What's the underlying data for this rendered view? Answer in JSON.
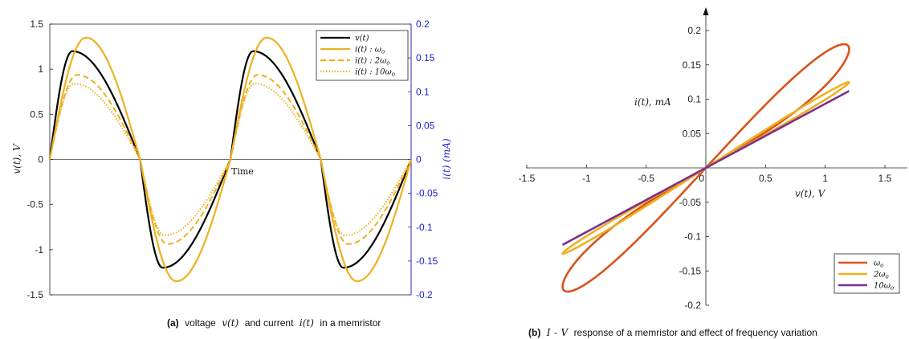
{
  "chart_data": [
    {
      "type": "line",
      "caption_label": "(a)",
      "caption_parts": [
        "voltage",
        "v(t)",
        "and current",
        "i(t)",
        "in a memristor"
      ],
      "xlabel": "Time",
      "ylabel": "v(t),  V",
      "ylabel_right": "i(t)  (mA)",
      "ylim": [
        -1.5,
        1.5
      ],
      "ylim_right": [
        -0.2,
        0.2
      ],
      "yticks": [
        "1.5",
        "1",
        "0.5",
        "0",
        "-0.5",
        "-1",
        "-1.5"
      ],
      "yticks_right": [
        "0.2",
        "0.15",
        "0.1",
        "0.05",
        "0",
        "-0.05",
        "-0.1",
        "-0.15",
        "-0.2"
      ],
      "legend_position": "top-right",
      "colors": {
        "voltage": "#000000",
        "current": "#EDB120",
        "right_axis": "#1f1fd0"
      },
      "series": [
        {
          "name": "v(t)",
          "axis": "left",
          "style": "solid",
          "amplitude": 1.2,
          "peak_x": [
            0.25,
            2.25
          ],
          "trough_x": [
            1.25,
            3.25
          ],
          "zero_x": [
            0,
            1,
            2,
            3,
            4
          ]
        },
        {
          "name": "i(t) :  ωo",
          "axis": "right",
          "style": "solid",
          "amplitude": 0.18,
          "peak_x": [
            0.4,
            2.4
          ],
          "trough_x": [
            1.4,
            3.4
          ],
          "zero_x": [
            0,
            1,
            2,
            3,
            4
          ]
        },
        {
          "name": "i(t) :  2ωo",
          "axis": "right",
          "style": "dashed",
          "amplitude": 0.125,
          "peak_x": [
            0.3,
            2.3
          ],
          "trough_x": [
            1.3,
            3.3
          ],
          "zero_x": [
            0,
            1,
            2,
            3,
            4
          ]
        },
        {
          "name": "i(t) :  10ωo",
          "axis": "right",
          "style": "dotted",
          "amplitude": 0.112,
          "peak_x": [
            0.27,
            2.27
          ],
          "trough_x": [
            1.27,
            3.27
          ],
          "zero_x": [
            0,
            1,
            2,
            3,
            4
          ]
        }
      ]
    },
    {
      "type": "line",
      "caption_label": "(b)",
      "caption_parts": [
        "I",
        "-",
        "V",
        "response of a memristor and effect of frequency variation"
      ],
      "xlabel": "v(t),  V",
      "ylabel": "i(t),  mA",
      "xlim": [
        -1.5,
        1.5
      ],
      "ylim": [
        -0.2,
        0.2
      ],
      "xticks": [
        "-1.5",
        "-1",
        "-0.5",
        "0",
        "0.5",
        "1",
        "1.5"
      ],
      "yticks": [
        "0.2",
        "0.15",
        "0.1",
        "0.05",
        "0",
        "-0.05",
        "-0.1",
        "-0.15",
        "-0.2"
      ],
      "legend_position": "bottom-right",
      "series": [
        {
          "name": "ωo",
          "color": "#D95319",
          "v_amplitude": 1.2,
          "loop_max_i": 0.18,
          "loop_max_at_v": 0.97,
          "end_i": 0.12
        },
        {
          "name": "2ωo",
          "color": "#EDB120",
          "v_amplitude": 1.2,
          "loop_max_i": 0.125,
          "loop_max_at_v": 1.18,
          "end_i": 0.115
        },
        {
          "name": "10ωo",
          "color": "#7E2F8E",
          "v_amplitude": 1.2,
          "loop_max_i": 0.112,
          "loop_max_at_v": 1.2,
          "end_i": 0.112
        }
      ]
    }
  ]
}
